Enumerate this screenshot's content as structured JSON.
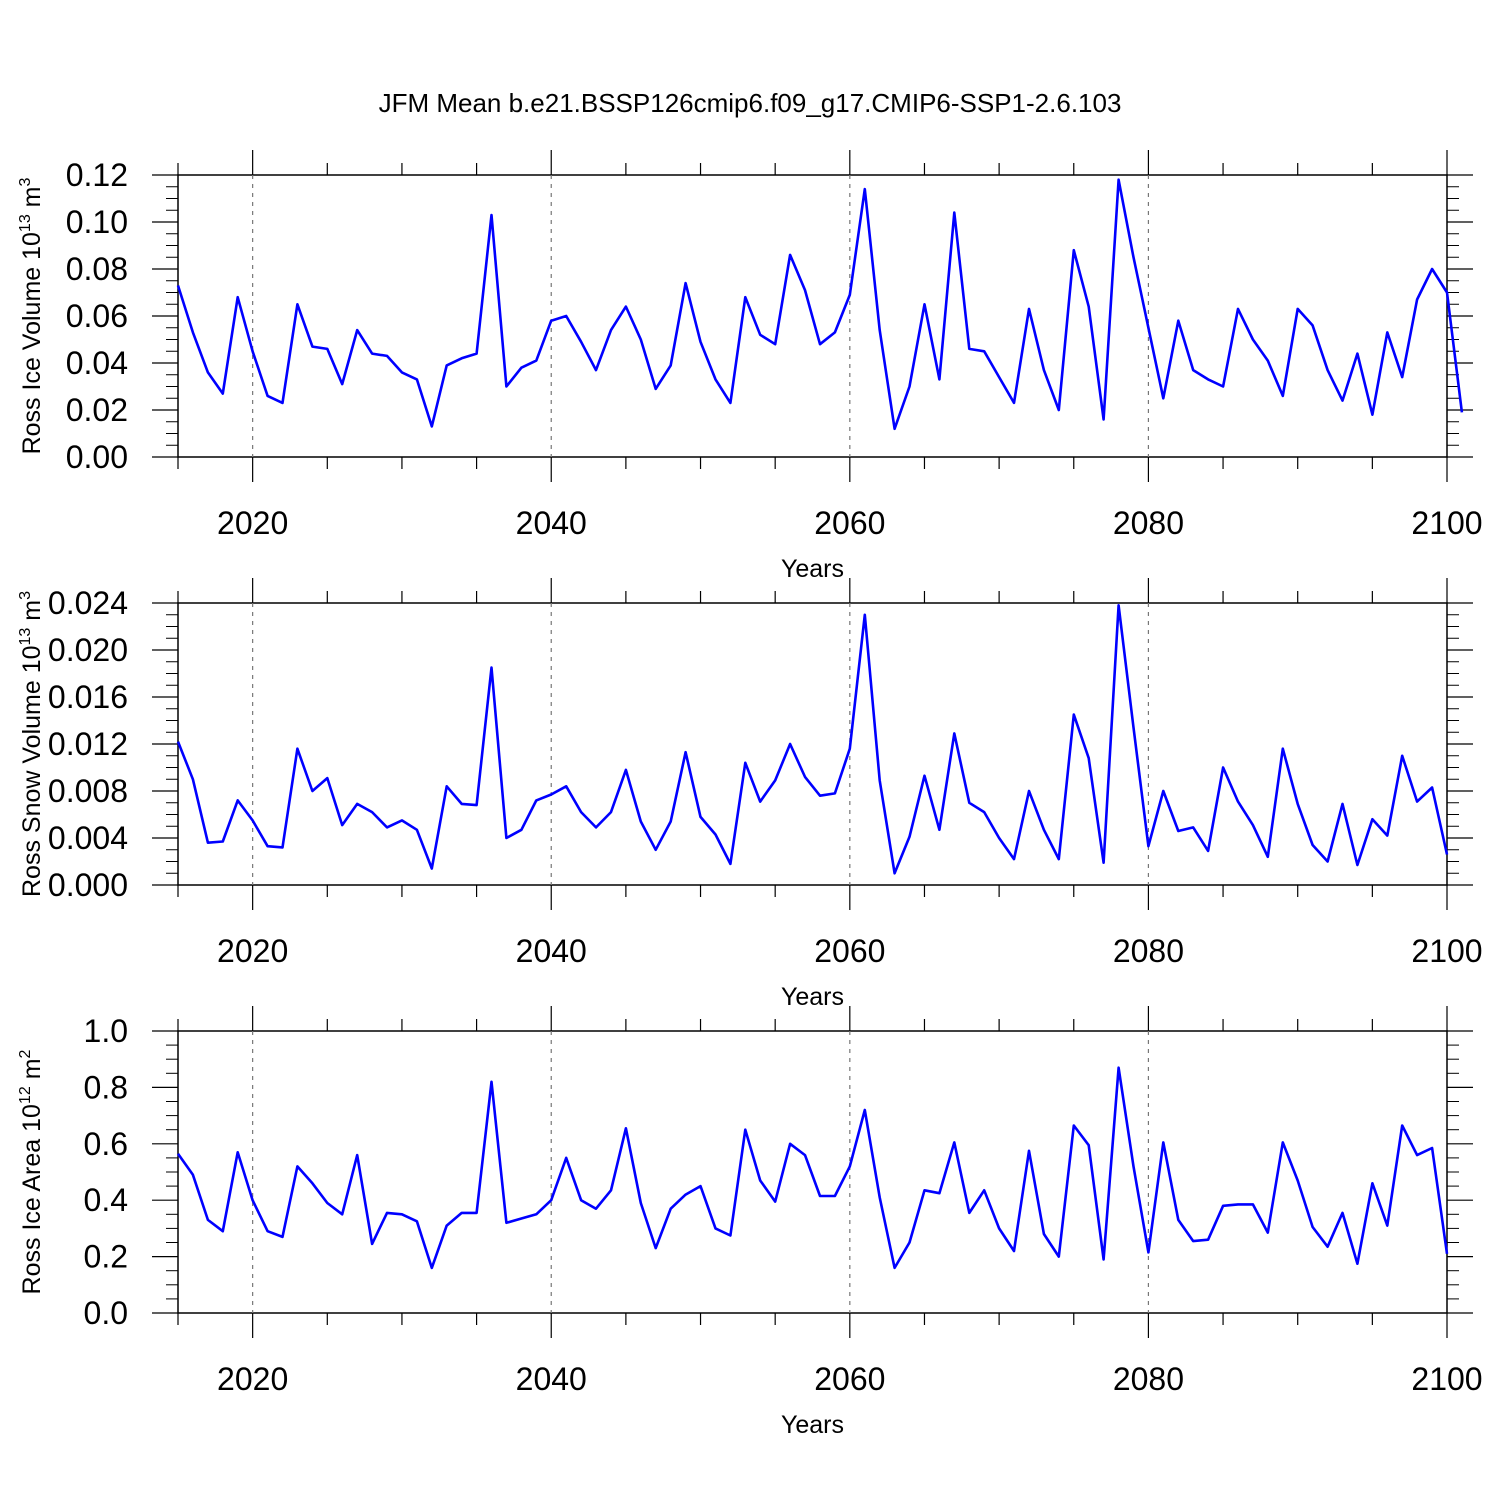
{
  "title": "JFM Mean b.e21.BSSP126cmip6.f09_g17.CMIP6-SSP1-2.6.103",
  "chart_data": [
    {
      "type": "line",
      "ylabel_main": "Ross Ice Volume 10",
      "ylabel_exp": "13",
      "ylabel_unit": " m",
      "ylabel_unit_exp": "3",
      "xlabel": "Years",
      "xlim": [
        2015,
        2100
      ],
      "ylim": [
        0,
        0.12
      ],
      "yticks": [
        "0.00",
        "0.02",
        "0.04",
        "0.06",
        "0.08",
        "0.10",
        "0.12"
      ],
      "xticks": [
        "2020",
        "2040",
        "2060",
        "2080",
        "2100"
      ],
      "x_start": 2015,
      "line_color": "#0000ff",
      "values": [
        0.073,
        0.053,
        0.036,
        0.027,
        0.068,
        0.045,
        0.026,
        0.023,
        0.065,
        0.047,
        0.046,
        0.031,
        0.054,
        0.044,
        0.043,
        0.036,
        0.033,
        0.013,
        0.039,
        0.042,
        0.044,
        0.103,
        0.03,
        0.038,
        0.041,
        0.058,
        0.06,
        0.049,
        0.037,
        0.054,
        0.064,
        0.05,
        0.029,
        0.039,
        0.074,
        0.049,
        0.033,
        0.023,
        0.068,
        0.052,
        0.048,
        0.086,
        0.071,
        0.048,
        0.053,
        0.069,
        0.114,
        0.054,
        0.012,
        0.03,
        0.065,
        0.033,
        0.104,
        0.046,
        0.045,
        0.034,
        0.023,
        0.063,
        0.037,
        0.02,
        0.088,
        0.064,
        0.016,
        0.118,
        0.085,
        0.055,
        0.025,
        0.058,
        0.037,
        0.033,
        0.03,
        0.063,
        0.05,
        0.041,
        0.026,
        0.063,
        0.056,
        0.037,
        0.024,
        0.044,
        0.018,
        0.053,
        0.034,
        0.067,
        0.08,
        0.07,
        0.019
      ]
    },
    {
      "type": "line",
      "ylabel_main": "Ross Snow Volume 10",
      "ylabel_exp": "13",
      "ylabel_unit": " m",
      "ylabel_unit_exp": "3",
      "xlabel": "Years",
      "xlim": [
        2015,
        2100
      ],
      "ylim": [
        0,
        0.024
      ],
      "yticks": [
        "0.000",
        "0.004",
        "0.008",
        "0.012",
        "0.016",
        "0.020",
        "0.024"
      ],
      "xticks": [
        "2020",
        "2040",
        "2060",
        "2080",
        "2100"
      ],
      "x_start": 2015,
      "line_color": "#0000ff",
      "values": [
        0.0122,
        0.009,
        0.0036,
        0.0037,
        0.0072,
        0.0055,
        0.0033,
        0.0032,
        0.0116,
        0.008,
        0.0091,
        0.0051,
        0.0069,
        0.0062,
        0.0049,
        0.0055,
        0.0047,
        0.0014,
        0.0084,
        0.0069,
        0.0068,
        0.0185,
        0.004,
        0.0047,
        0.0072,
        0.0077,
        0.0084,
        0.0062,
        0.0049,
        0.0062,
        0.0098,
        0.0054,
        0.003,
        0.0054,
        0.0113,
        0.0058,
        0.0043,
        0.0018,
        0.0104,
        0.0071,
        0.0089,
        0.012,
        0.0092,
        0.0076,
        0.0078,
        0.0116,
        0.023,
        0.0089,
        0.001,
        0.0041,
        0.0093,
        0.0047,
        0.0129,
        0.007,
        0.0062,
        0.004,
        0.0022,
        0.008,
        0.0047,
        0.0022,
        0.0145,
        0.0108,
        0.0019,
        0.0238,
        0.0134,
        0.0033,
        0.008,
        0.0046,
        0.0049,
        0.0029,
        0.01,
        0.0071,
        0.0051,
        0.0024,
        0.0116,
        0.0069,
        0.0034,
        0.002,
        0.0069,
        0.0017,
        0.0056,
        0.0042,
        0.011,
        0.0071,
        0.0083,
        0.0026
      ]
    },
    {
      "type": "line",
      "ylabel_main": "Ross Ice Area 10",
      "ylabel_exp": "12",
      "ylabel_unit": " m",
      "ylabel_unit_exp": "2",
      "xlabel": "Years",
      "xlim": [
        2015,
        2100
      ],
      "ylim": [
        0,
        1.0
      ],
      "yticks": [
        "0.0",
        "0.2",
        "0.4",
        "0.6",
        "0.8",
        "1.0"
      ],
      "xticks": [
        "2020",
        "2040",
        "2060",
        "2080",
        "2100"
      ],
      "x_start": 2015,
      "line_color": "#0000ff",
      "values": [
        0.565,
        0.49,
        0.33,
        0.29,
        0.57,
        0.4,
        0.29,
        0.27,
        0.52,
        0.46,
        0.39,
        0.35,
        0.56,
        0.245,
        0.355,
        0.35,
        0.325,
        0.16,
        0.31,
        0.355,
        0.355,
        0.82,
        0.32,
        0.335,
        0.35,
        0.4,
        0.55,
        0.4,
        0.37,
        0.435,
        0.655,
        0.39,
        0.23,
        0.37,
        0.42,
        0.45,
        0.3,
        0.275,
        0.65,
        0.47,
        0.395,
        0.6,
        0.56,
        0.415,
        0.415,
        0.52,
        0.72,
        0.41,
        0.16,
        0.25,
        0.435,
        0.425,
        0.605,
        0.355,
        0.435,
        0.3,
        0.22,
        0.575,
        0.28,
        0.2,
        0.665,
        0.595,
        0.19,
        0.87,
        0.52,
        0.215,
        0.605,
        0.33,
        0.255,
        0.26,
        0.38,
        0.385,
        0.385,
        0.285,
        0.605,
        0.47,
        0.305,
        0.235,
        0.355,
        0.175,
        0.46,
        0.31,
        0.665,
        0.56,
        0.585,
        0.21
      ]
    }
  ]
}
